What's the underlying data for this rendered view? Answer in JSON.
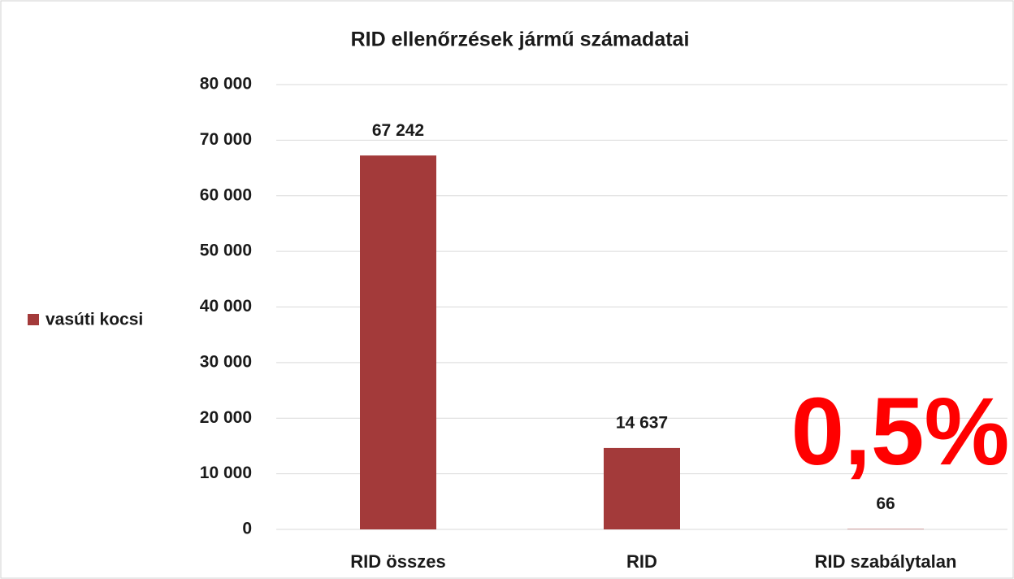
{
  "chart_data": {
    "type": "bar",
    "title": "RID ellenőrzések jármű számadatai",
    "categories": [
      "RID összes",
      "RID",
      "RID szabálytalan"
    ],
    "series": [
      {
        "name": "vasúti kocsi",
        "color": "#a33a3a",
        "values": [
          67242,
          14637,
          66
        ],
        "value_labels": [
          "67 242",
          "14 637",
          "66"
        ]
      }
    ],
    "ylim": [
      0,
      80000
    ],
    "yticks": [
      0,
      {
        "value": 10000,
        "label": "10 000"
      },
      {
        "value": 20000,
        "label": "20 000"
      },
      {
        "value": 30000,
        "label": "30 000"
      },
      {
        "value": 40000,
        "label": "40 000"
      },
      {
        "value": 50000,
        "label": "50 000"
      },
      {
        "value": 60000,
        "label": "60 000"
      },
      {
        "value": 70000,
        "label": "70 000"
      },
      {
        "value": 80000,
        "label": "80 000"
      }
    ],
    "grid": true,
    "legend": "left",
    "annotations": [
      {
        "text": "0,5%",
        "color": "#ff0000"
      }
    ]
  }
}
